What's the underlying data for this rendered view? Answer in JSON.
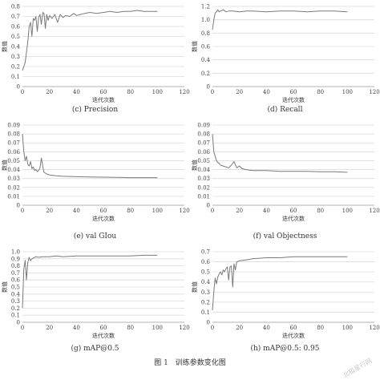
{
  "figure_caption": "图 1　训练参数变化图",
  "watermark": "北极星行网",
  "chart_data": [
    {
      "type": "line",
      "caption": "(c)  Precision",
      "xlabel": "迭代次数",
      "ylabel": "数值",
      "xlim": [
        0,
        120
      ],
      "ylim": [
        0,
        0.8
      ],
      "xticks": [
        0,
        20,
        40,
        60,
        80,
        100,
        120
      ],
      "yticks": [
        0,
        0.1,
        0.2,
        0.3,
        0.4,
        0.5,
        0.6,
        0.7,
        0.8
      ],
      "ytick_labels": [
        "0",
        "0.1",
        "0.2",
        "0.3",
        "0.4",
        "0.5",
        "0.6",
        "0.7",
        "0.8"
      ],
      "grid": "horizontal",
      "series": [
        {
          "x": [
            0,
            2,
            4,
            5,
            6,
            7,
            8,
            9,
            10,
            11,
            12,
            13,
            14,
            15,
            16,
            17,
            18,
            19,
            20,
            22,
            24,
            26,
            28,
            30,
            32,
            35,
            38,
            40,
            43,
            46,
            50,
            55,
            60,
            65,
            70,
            75,
            80,
            85,
            90,
            95,
            100
          ],
          "y": [
            0.16,
            0.24,
            0.45,
            0.6,
            0.64,
            0.5,
            0.68,
            0.66,
            0.7,
            0.55,
            0.69,
            0.72,
            0.62,
            0.74,
            0.73,
            0.58,
            0.72,
            0.66,
            0.71,
            0.68,
            0.72,
            0.64,
            0.72,
            0.69,
            0.71,
            0.7,
            0.73,
            0.71,
            0.72,
            0.73,
            0.74,
            0.73,
            0.74,
            0.75,
            0.74,
            0.75,
            0.75,
            0.76,
            0.75,
            0.75,
            0.75
          ]
        }
      ]
    },
    {
      "type": "line",
      "caption": "(d)  Recall",
      "xlabel": "迭代次数",
      "ylabel": "数值",
      "xlim": [
        0,
        120
      ],
      "ylim": [
        0,
        1.2
      ],
      "xticks": [
        0,
        20,
        40,
        60,
        80,
        100,
        120
      ],
      "yticks": [
        0,
        0.2,
        0.4,
        0.6,
        0.8,
        1.0,
        1.2
      ],
      "ytick_labels": [
        "0",
        "0.2",
        "0.4",
        "0.6",
        "0.8",
        "1.0",
        "1.2"
      ],
      "grid": "horizontal",
      "series": [
        {
          "x": [
            0,
            1,
            2,
            3,
            4,
            5,
            6,
            8,
            10,
            12,
            15,
            20,
            25,
            30,
            40,
            50,
            60,
            70,
            80,
            90,
            100
          ],
          "y": [
            0.85,
            1.0,
            1.1,
            1.12,
            1.15,
            1.12,
            1.13,
            1.15,
            1.12,
            1.13,
            1.13,
            1.12,
            1.13,
            1.13,
            1.12,
            1.13,
            1.13,
            1.12,
            1.13,
            1.13,
            1.12
          ]
        }
      ]
    },
    {
      "type": "line",
      "caption": "(e)  val GIou",
      "xlabel": "迭代次数",
      "ylabel": "数值",
      "xlim": [
        0,
        120
      ],
      "ylim": [
        0,
        0.09
      ],
      "xticks": [
        0,
        20,
        40,
        60,
        80,
        100,
        120
      ],
      "yticks": [
        0,
        0.01,
        0.02,
        0.03,
        0.04,
        0.05,
        0.06,
        0.07,
        0.08,
        0.09
      ],
      "ytick_labels": [
        "0",
        "0.01",
        "0.02",
        "0.03",
        "0.04",
        "0.05",
        "0.06",
        "0.07",
        "0.08",
        "0.09"
      ],
      "grid": "horizontal",
      "series": [
        {
          "x": [
            0,
            1,
            2,
            3,
            4,
            5,
            6,
            7,
            8,
            9,
            10,
            11,
            12,
            13,
            14,
            15,
            16,
            17,
            18,
            20,
            25,
            30,
            40,
            50,
            60,
            70,
            80,
            90,
            100
          ],
          "y": [
            0.08,
            0.06,
            0.05,
            0.055,
            0.046,
            0.044,
            0.049,
            0.041,
            0.043,
            0.039,
            0.04,
            0.038,
            0.039,
            0.042,
            0.053,
            0.044,
            0.037,
            0.036,
            0.035,
            0.034,
            0.033,
            0.0325,
            0.032,
            0.0318,
            0.0315,
            0.0313,
            0.031,
            0.031,
            0.031
          ]
        }
      ]
    },
    {
      "type": "line",
      "caption": "(f)  val Objectness",
      "xlabel": "迭代次数",
      "ylabel": "数值",
      "xlim": [
        0,
        120
      ],
      "ylim": [
        0,
        0.09
      ],
      "xticks": [
        0,
        20,
        40,
        60,
        80,
        100,
        120
      ],
      "yticks": [
        0,
        0.01,
        0.02,
        0.03,
        0.04,
        0.05,
        0.06,
        0.07,
        0.08,
        0.09
      ],
      "ytick_labels": [
        "0",
        "0.01",
        "0.02",
        "0.03",
        "0.04",
        "0.05",
        "0.06",
        "0.07",
        "0.08",
        "0.09"
      ],
      "grid": "horizontal",
      "series": [
        {
          "x": [
            0,
            1,
            2,
            3,
            4,
            5,
            6,
            8,
            10,
            12,
            14,
            16,
            18,
            20,
            22,
            25,
            30,
            35,
            40,
            50,
            60,
            70,
            80,
            90,
            100
          ],
          "y": [
            0.08,
            0.06,
            0.055,
            0.05,
            0.048,
            0.047,
            0.045,
            0.044,
            0.043,
            0.042,
            0.045,
            0.049,
            0.042,
            0.044,
            0.041,
            0.04,
            0.039,
            0.039,
            0.039,
            0.038,
            0.038,
            0.038,
            0.0375,
            0.0375,
            0.037
          ]
        }
      ]
    },
    {
      "type": "line",
      "caption": "(g)    mAP@0.5",
      "xlabel": "迭代次数",
      "ylabel": "数值",
      "xlim": [
        0,
        120
      ],
      "ylim": [
        0,
        1.0
      ],
      "xticks": [
        0,
        20,
        40,
        60,
        80,
        100,
        120
      ],
      "yticks": [
        0,
        0.1,
        0.2,
        0.3,
        0.4,
        0.5,
        0.6,
        0.7,
        0.8,
        0.9,
        1.0
      ],
      "ytick_labels": [
        "0",
        "0.1",
        "0.2",
        "0.3",
        "0.4",
        "0.5",
        "0.6",
        "0.7",
        "0.8",
        "0.9",
        "1.0"
      ],
      "grid": "horizontal",
      "series": [
        {
          "x": [
            0,
            1,
            2,
            3,
            4,
            5,
            6,
            7,
            8,
            10,
            12,
            15,
            20,
            25,
            30,
            40,
            50,
            60,
            70,
            80,
            90,
            100
          ],
          "y": [
            0.2,
            0.75,
            0.88,
            0.6,
            0.85,
            0.92,
            0.87,
            0.9,
            0.91,
            0.93,
            0.92,
            0.93,
            0.93,
            0.94,
            0.93,
            0.94,
            0.94,
            0.94,
            0.94,
            0.94,
            0.95,
            0.95
          ]
        }
      ]
    },
    {
      "type": "line",
      "caption": "(h) mAP@0.5: 0.95",
      "xlabel": "迭代次数",
      "ylabel": "数值",
      "xlim": [
        0,
        120
      ],
      "ylim": [
        0,
        0.7
      ],
      "xticks": [
        0,
        20,
        40,
        60,
        80,
        100,
        120
      ],
      "yticks": [
        0,
        0.1,
        0.2,
        0.3,
        0.4,
        0.5,
        0.6,
        0.7
      ],
      "ytick_labels": [
        "0",
        "0.1",
        "0.2",
        "0.3",
        "0.4",
        "0.5",
        "0.6",
        "0.7"
      ],
      "grid": "horizontal",
      "series": [
        {
          "x": [
            0,
            1,
            2,
            3,
            4,
            5,
            6,
            7,
            8,
            9,
            10,
            11,
            12,
            13,
            14,
            15,
            16,
            17,
            18,
            20,
            25,
            30,
            40,
            50,
            60,
            70,
            80,
            90,
            100
          ],
          "y": [
            0.12,
            0.3,
            0.44,
            0.38,
            0.45,
            0.48,
            0.5,
            0.47,
            0.52,
            0.5,
            0.53,
            0.55,
            0.42,
            0.55,
            0.56,
            0.35,
            0.58,
            0.52,
            0.6,
            0.61,
            0.62,
            0.63,
            0.64,
            0.64,
            0.65,
            0.65,
            0.65,
            0.65,
            0.65
          ]
        }
      ]
    }
  ]
}
